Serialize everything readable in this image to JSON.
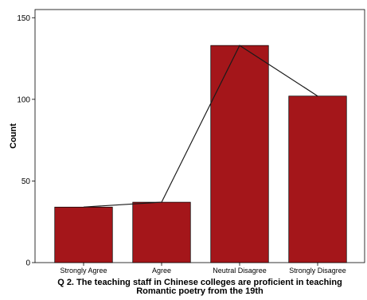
{
  "chart_data": {
    "type": "bar",
    "categories": [
      "Strongly Agree",
      "Agree",
      "Neutral Disagree",
      "Strongly Disagree"
    ],
    "values": [
      34,
      37,
      133,
      102
    ],
    "overlay_line": true,
    "xlabel_lines": [
      "Q 2. The teaching staff in Chinese colleges are proficient in teaching",
      "Romantic poetry from the 19th"
    ],
    "ylabel": "Count",
    "ylim": [
      0,
      155
    ],
    "yticks": [
      0,
      50,
      100,
      150
    ],
    "grid": false,
    "bar_color": "#a4161a",
    "line_color": "#1a1a1a"
  }
}
